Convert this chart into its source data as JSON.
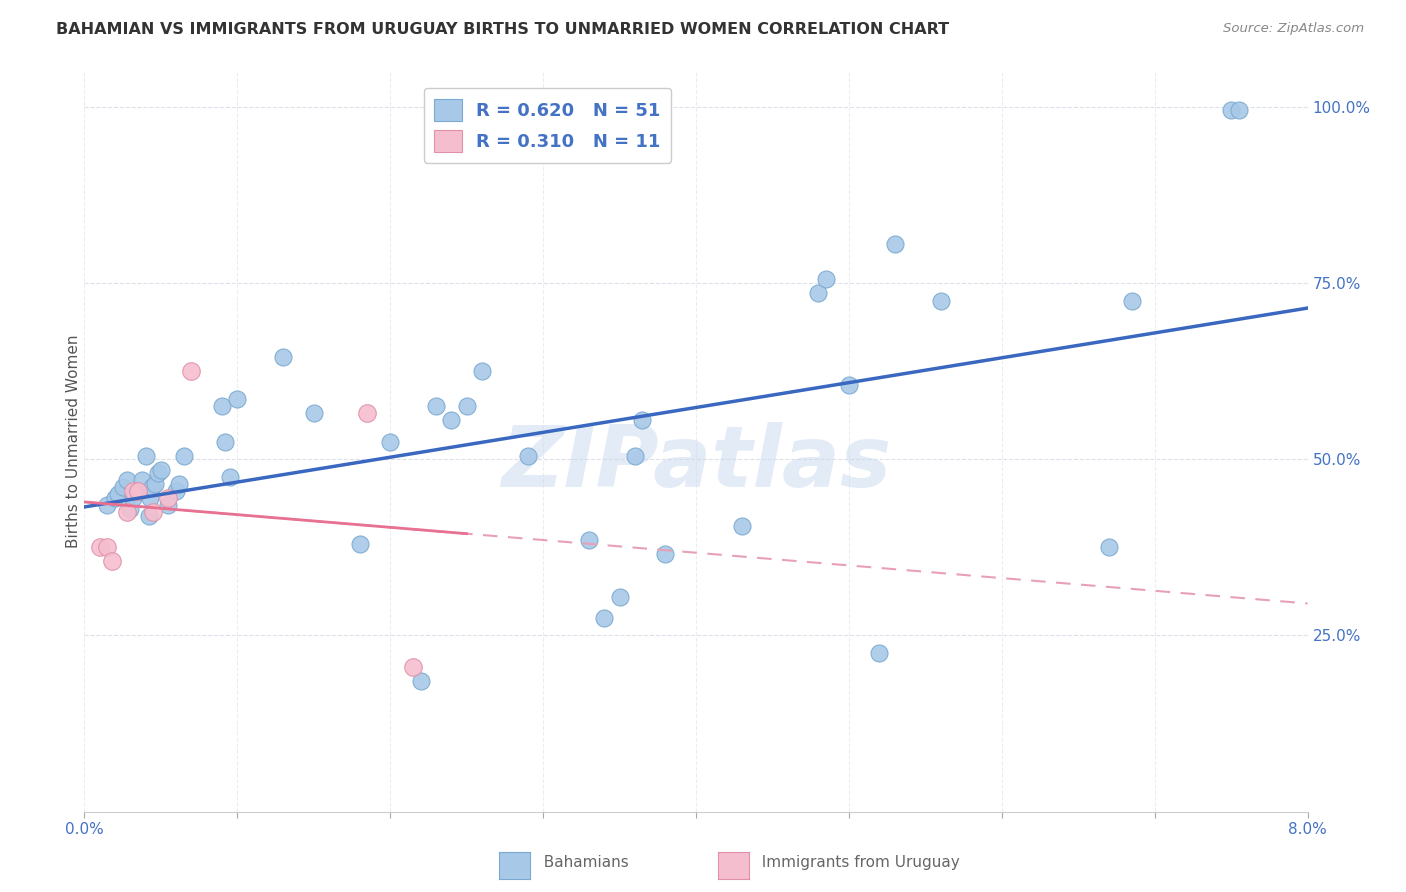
{
  "title": "BAHAMIAN VS IMMIGRANTS FROM URUGUAY BIRTHS TO UNMARRIED WOMEN CORRELATION CHART",
  "source": "Source: ZipAtlas.com",
  "ylabel": "Births to Unmarried Women",
  "watermark_text": "ZIPatlas",
  "blue_scatter_color": "#a8c8e8",
  "blue_scatter_edge": "#7aaad0",
  "pink_scatter_color": "#f5bece",
  "pink_scatter_edge": "#e090a8",
  "blue_line_color": "#3a68c0",
  "pink_solid_color": "#e87090",
  "pink_dash_color": "#e8a0b8",
  "grid_color": "#d8dde8",
  "tick_color": "#4472c4",
  "legend_text_color": "#4472c4",
  "title_color": "#333333",
  "source_color": "#888888",
  "ylabel_color": "#555555",
  "bottom_label_color": "#666666",
  "bahamians_x": [
    0.15,
    0.2,
    0.22,
    0.25,
    0.28,
    0.3,
    0.32,
    0.35,
    0.38,
    0.4,
    0.42,
    0.43,
    0.44,
    0.46,
    0.48,
    0.5,
    0.55,
    0.6,
    0.62,
    0.65,
    0.9,
    0.92,
    0.95,
    1.0,
    1.3,
    1.5,
    1.8,
    2.0,
    2.2,
    2.3,
    2.4,
    2.5,
    2.6,
    2.9,
    3.3,
    3.4,
    3.5,
    3.6,
    3.65,
    3.8,
    4.3,
    4.8,
    4.85,
    5.0,
    5.2,
    5.3,
    5.6,
    6.7,
    6.85,
    7.5,
    7.55
  ],
  "bahamians_y": [
    0.435,
    0.445,
    0.45,
    0.46,
    0.47,
    0.43,
    0.445,
    0.455,
    0.47,
    0.505,
    0.42,
    0.445,
    0.46,
    0.465,
    0.48,
    0.485,
    0.435,
    0.455,
    0.465,
    0.505,
    0.575,
    0.525,
    0.475,
    0.585,
    0.645,
    0.565,
    0.38,
    0.525,
    0.185,
    0.575,
    0.555,
    0.575,
    0.625,
    0.505,
    0.385,
    0.275,
    0.305,
    0.505,
    0.555,
    0.365,
    0.405,
    0.735,
    0.755,
    0.605,
    0.225,
    0.805,
    0.725,
    0.375,
    0.725,
    0.995,
    0.995
  ],
  "uruguay_x": [
    0.1,
    0.15,
    0.18,
    0.28,
    0.32,
    0.35,
    0.45,
    0.55,
    0.7,
    1.85,
    2.15
  ],
  "uruguay_y": [
    0.375,
    0.375,
    0.355,
    0.425,
    0.455,
    0.455,
    0.425,
    0.445,
    0.625,
    0.565,
    0.205
  ],
  "xlim": [
    0.0,
    8.0
  ],
  "ylim": [
    0.0,
    1.05
  ],
  "xticks": [
    0.0,
    1.0,
    2.0,
    3.0,
    4.0,
    5.0,
    6.0,
    7.0,
    8.0
  ],
  "yticks": [
    0.25,
    0.5,
    0.75,
    1.0
  ],
  "legend_R1": "0.620",
  "legend_N1": "51",
  "legend_R2": "0.310",
  "legend_N2": "11"
}
